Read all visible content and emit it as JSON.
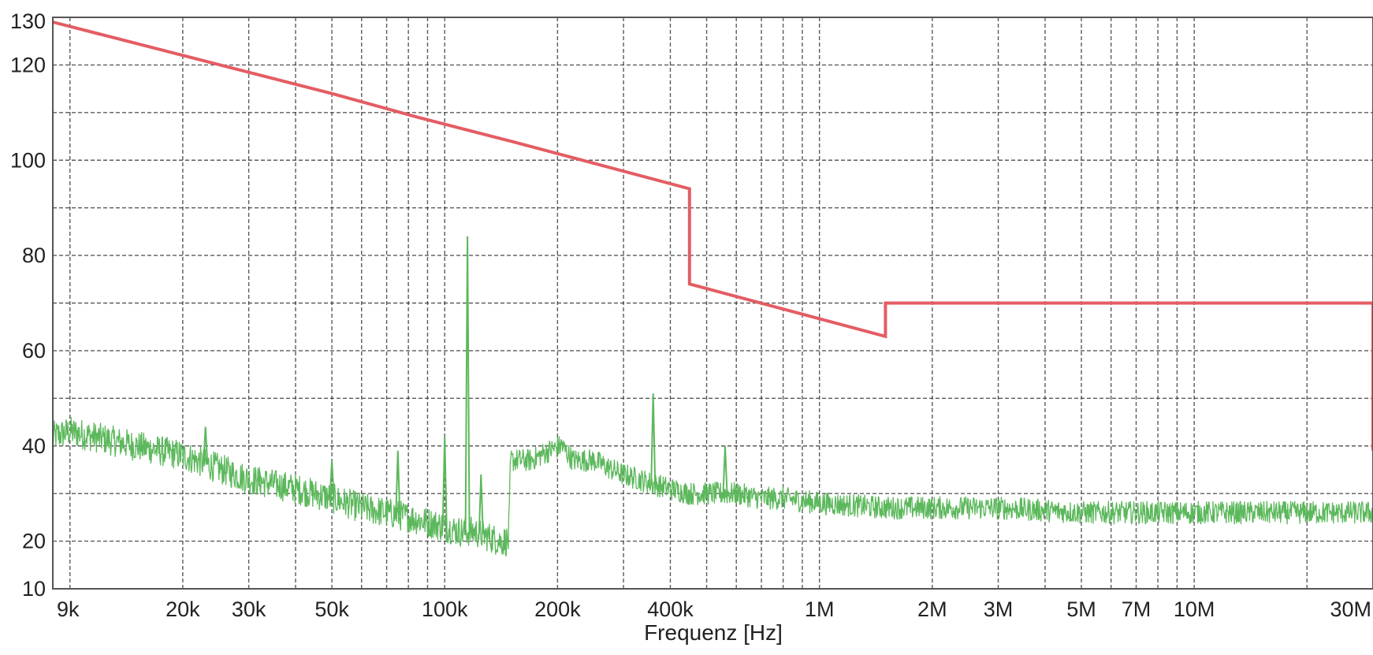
{
  "chart_data": {
    "type": "line",
    "title": "",
    "xlabel": "Frequenz [Hz]",
    "ylabel": "",
    "x_scale": "log",
    "xlim": [
      9000,
      30000000
    ],
    "ylim": [
      10,
      130
    ],
    "grid": true,
    "x_ticks": [
      {
        "value": 9000,
        "label": "9k"
      },
      {
        "value": 20000,
        "label": "20k"
      },
      {
        "value": 30000,
        "label": "30k"
      },
      {
        "value": 50000,
        "label": "50k"
      },
      {
        "value": 100000,
        "label": "100k"
      },
      {
        "value": 200000,
        "label": "200k"
      },
      {
        "value": 400000,
        "label": "400k"
      },
      {
        "value": 1000000,
        "label": "1M"
      },
      {
        "value": 2000000,
        "label": "2M"
      },
      {
        "value": 3000000,
        "label": "3M"
      },
      {
        "value": 5000000,
        "label": "5M"
      },
      {
        "value": 7000000,
        "label": "7M"
      },
      {
        "value": 10000000,
        "label": "10M"
      },
      {
        "value": 30000000,
        "label": "30M"
      }
    ],
    "y_ticks": [
      {
        "value": 10,
        "label": "10"
      },
      {
        "value": 20,
        "label": "20"
      },
      {
        "value": 40,
        "label": "40"
      },
      {
        "value": 60,
        "label": "60"
      },
      {
        "value": 80,
        "label": "80"
      },
      {
        "value": 100,
        "label": "100"
      },
      {
        "value": 120,
        "label": "120"
      },
      {
        "value": 130,
        "label": "130"
      }
    ],
    "series": [
      {
        "color": "#e35d63",
        "points": [
          [
            9000,
            129
          ],
          [
            50000,
            114
          ],
          [
            85000,
            109
          ],
          [
            150000,
            104
          ],
          [
            450000,
            94
          ],
          [
            450000,
            74
          ],
          [
            1500000,
            63
          ],
          [
            1500000,
            70
          ],
          [
            30000000,
            70
          ],
          [
            30000000,
            39
          ]
        ]
      },
      {
        "color": "#5cb85c",
        "noise": true,
        "points": [
          [
            9000,
            42
          ],
          [
            10000,
            43
          ],
          [
            15000,
            40
          ],
          [
            20000,
            38
          ],
          [
            30000,
            33
          ],
          [
            40000,
            31
          ],
          [
            50000,
            29
          ],
          [
            60000,
            27
          ],
          [
            70000,
            26
          ],
          [
            80000,
            25
          ],
          [
            90000,
            24
          ],
          [
            100000,
            23
          ],
          [
            110000,
            22
          ],
          [
            120000,
            22
          ],
          [
            130000,
            21
          ],
          [
            140000,
            20
          ],
          [
            148000,
            20
          ],
          [
            150000,
            37
          ],
          [
            170000,
            37
          ],
          [
            190000,
            39
          ],
          [
            205000,
            40
          ],
          [
            220000,
            37
          ],
          [
            250000,
            37
          ],
          [
            280000,
            35
          ],
          [
            300000,
            34
          ],
          [
            330000,
            33
          ],
          [
            360000,
            32
          ],
          [
            400000,
            31
          ],
          [
            450000,
            30
          ],
          [
            500000,
            30
          ],
          [
            600000,
            30
          ],
          [
            700000,
            29
          ],
          [
            800000,
            29
          ],
          [
            1000000,
            28
          ],
          [
            1500000,
            27
          ],
          [
            2000000,
            27
          ],
          [
            3000000,
            27
          ],
          [
            5000000,
            26
          ],
          [
            10000000,
            26
          ],
          [
            20000000,
            26
          ],
          [
            30000000,
            26
          ]
        ],
        "peaks": [
          [
            23000,
            44
          ],
          [
            32000,
            35
          ],
          [
            50000,
            37
          ],
          [
            75000,
            39
          ],
          [
            100000,
            42
          ],
          [
            115000,
            84
          ],
          [
            125000,
            34
          ],
          [
            205000,
            41
          ],
          [
            360000,
            51
          ],
          [
            560000,
            40
          ]
        ]
      }
    ]
  }
}
